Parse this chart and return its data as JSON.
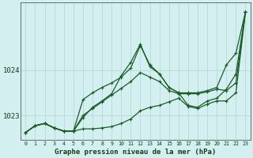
{
  "title": "Graphe pression niveau de la mer (hPa)",
  "background_color": "#d4efef",
  "grid_color": "#b8d8d8",
  "line_color": "#1a5c28",
  "marker_color": "#1a5c28",
  "ytick_labels": [
    "1023",
    "1024"
  ],
  "ytick_vals": [
    1023,
    1024
  ],
  "ylim": [
    1022.45,
    1025.5
  ],
  "xlim": [
    -0.5,
    23.5
  ],
  "series": [
    [
      1022.62,
      1022.77,
      1022.82,
      1022.72,
      1022.65,
      1022.65,
      1022.7,
      1022.7,
      1022.72,
      1022.75,
      1022.82,
      1022.92,
      1023.1,
      1023.18,
      1023.22,
      1023.3,
      1023.38,
      1023.2,
      1023.15,
      1023.25,
      1023.32,
      1023.32,
      1023.5,
      1025.3
    ],
    [
      1022.62,
      1022.77,
      1022.82,
      1022.72,
      1022.65,
      1022.65,
      1023.0,
      1023.15,
      1023.3,
      1023.45,
      1023.6,
      1023.75,
      1023.95,
      1023.85,
      1023.75,
      1023.55,
      1023.48,
      1023.48,
      1023.48,
      1023.52,
      1023.58,
      1023.55,
      1023.72,
      1025.3
    ],
    [
      1022.62,
      1022.77,
      1022.82,
      1022.72,
      1022.65,
      1022.65,
      1023.35,
      1023.5,
      1023.62,
      1023.72,
      1023.85,
      1024.05,
      1024.55,
      1024.12,
      1023.92,
      1023.62,
      1023.5,
      1023.5,
      1023.5,
      1023.55,
      1023.62,
      1024.12,
      1024.38,
      1025.3
    ],
    [
      1022.62,
      1022.77,
      1022.82,
      1022.72,
      1022.65,
      1022.65,
      1022.95,
      1023.18,
      1023.32,
      1023.48,
      1023.88,
      1024.18,
      1024.58,
      1024.08,
      1023.92,
      1023.62,
      1023.5,
      1023.22,
      1023.18,
      1023.32,
      1023.38,
      1023.58,
      1023.92,
      1025.3
    ]
  ],
  "figsize": [
    3.2,
    2.0
  ],
  "dpi": 100
}
